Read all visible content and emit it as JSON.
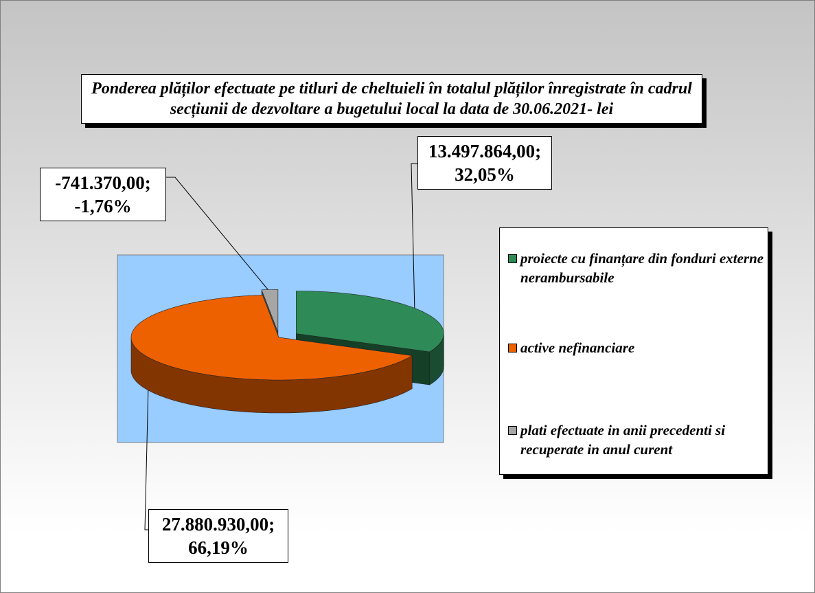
{
  "chart_data": {
    "type": "pie",
    "title": "Ponderea plăților efectuate pe titluri de cheltuieli în totalul plăților înregistrate în cadrul secțiunii de dezvoltare a bugetului local la data de 30.06.2021- lei",
    "categories": [
      "proiecte cu finanțare din fonduri externe nerambursabile",
      "active nefinanciare",
      "plati efectuate in anii precedenti si recuperate in anul curent"
    ],
    "values": [
      13497864.0,
      27880930.0,
      -741370.0
    ],
    "percentages": [
      32.05,
      66.19,
      -1.76
    ],
    "value_labels": [
      "13.497.864,00; 32,05%",
      "27.880.930,00; 66,19%",
      "-741.370,00; -1,76%"
    ],
    "colors": [
      "#2e8b57",
      "#ee6100",
      "#a6a6a6"
    ],
    "legend": "right"
  }
}
